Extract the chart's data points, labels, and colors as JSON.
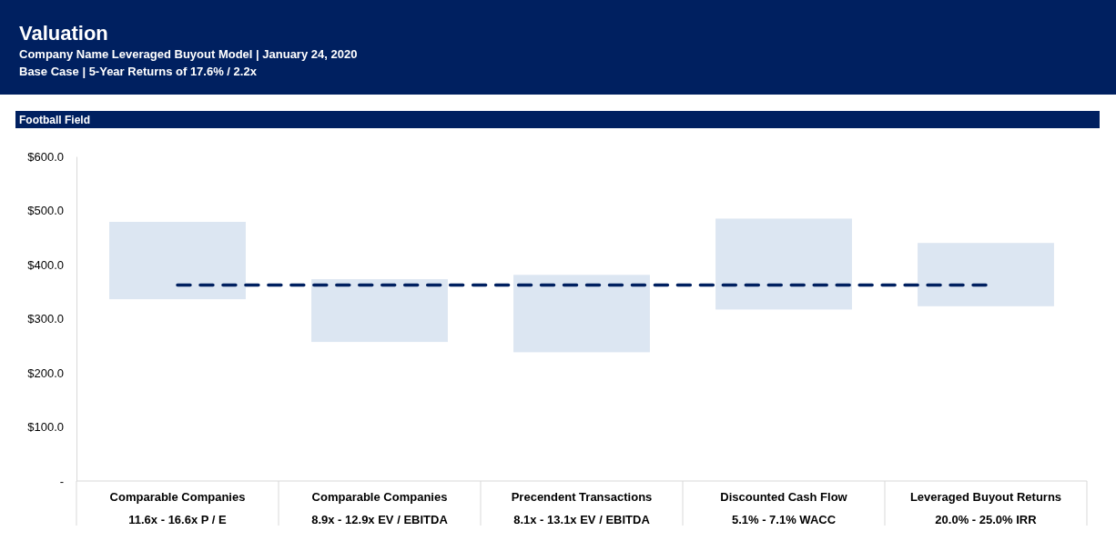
{
  "chart_data": {
    "type": "bar",
    "title": "Valuation",
    "subtitle": "Company Name Leveraged Buyout Model | January 24, 2020\nBase Case | 5-Year Returns of 17.6%  / 2.2x",
    "annotations": [
      "Football Field"
    ],
    "categories": [
      "Comparable Companies\n11.6x - 16.6x P / E",
      "Comparable Companies\n8.9x - 12.9x EV / EBITDA",
      "Precendent Transactions\n8.1x - 13.1x EV / EBITDA",
      "Discounted Cash Flow\n5.1%  - 7.1%  WACC",
      "Leveraged Buyout Returns\n20.0%  - 25.0%  IRR"
    ],
    "series": [
      {
        "color": "#dce6f2",
        "base": [
          336,
          257,
          238,
          317,
          323
        ],
        "values": [
          143,
          116,
          143,
          168,
          117
        ]
      },
      {
        "type": "line",
        "color": "#002060",
        "line_style": "dashed",
        "values": [
          362,
          362,
          362,
          362,
          362
        ]
      }
    ],
    "ylim": [
      0,
      600
    ],
    "yticks": [
      {
        "value": 0,
        "label": "-"
      },
      {
        "value": 100,
        "label": "$100.0"
      },
      {
        "value": 200,
        "label": "$200.0"
      },
      {
        "value": 300,
        "label": "$300.0"
      },
      {
        "value": 400,
        "label": "$400.0"
      },
      {
        "value": 500,
        "label": "$500.0"
      },
      {
        "value": 600,
        "label": "$600.0"
      }
    ],
    "grid": false
  }
}
